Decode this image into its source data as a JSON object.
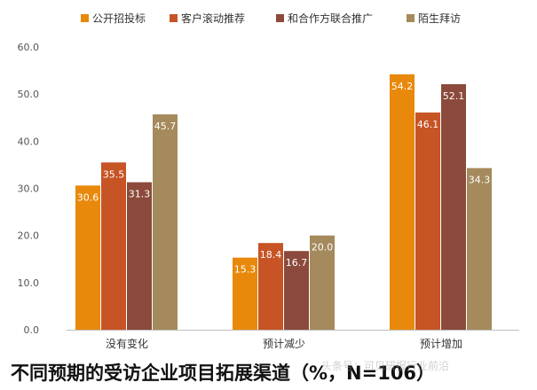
{
  "chart_data": {
    "type": "bar",
    "categories": [
      "没有变化",
      "预计减少",
      "预计增加"
    ],
    "series": [
      {
        "name": "公开招投标",
        "color": "#E8890C",
        "values": [
          30.6,
          15.3,
          54.2
        ]
      },
      {
        "name": "客户滚动推荐",
        "color": "#C75425",
        "values": [
          35.5,
          18.4,
          46.1
        ]
      },
      {
        "name": "和合作方联合推广",
        "color": "#8B4A3B",
        "values": [
          31.3,
          16.7,
          52.1
        ]
      },
      {
        "name": "陌生拜访",
        "color": "#A48A5C",
        "values": [
          45.7,
          20.0,
          34.3
        ]
      }
    ],
    "ylim": [
      0,
      60
    ],
    "yticks": [
      "0.0",
      "10.0",
      "20.0",
      "30.0",
      "40.0",
      "50.0",
      "60.0"
    ],
    "grid": false,
    "legend_position": "top"
  },
  "caption": "不同预期的受访企业项目拓展渠道（%，N=106）",
  "watermark": "头条号：可见研报行业前沿"
}
